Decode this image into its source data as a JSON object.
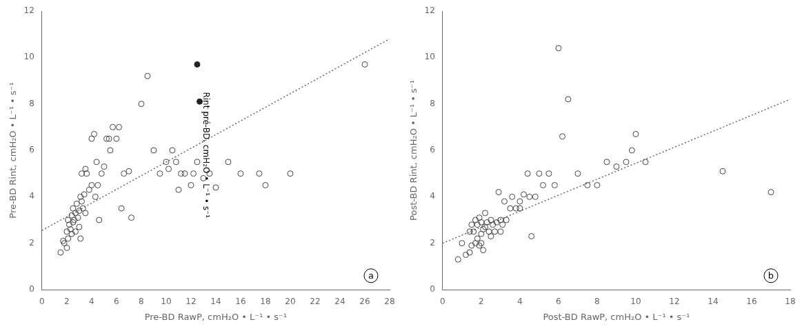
{
  "chart_data": [
    {
      "type": "scatter",
      "x_label": "Pre-BD RawP, cmH₂O • L⁻¹ • s⁻¹",
      "y_label": "Pre-BD Rint, cmH₂O • L⁻¹ • s⁻¹",
      "xlim": [
        0,
        28
      ],
      "ylim": [
        0,
        12
      ],
      "xticks": [
        0,
        2,
        4,
        6,
        8,
        10,
        12,
        14,
        16,
        18,
        20,
        22,
        24,
        26,
        28
      ],
      "yticks": [
        0,
        2,
        4,
        6,
        8,
        10,
        12
      ],
      "grid": false,
      "annotations": [
        {
          "text": "Rint pré-BD, cmH₂O • L⁻¹ • s⁻¹",
          "x": 13.2,
          "y": 5.8
        },
        {
          "text": "a",
          "x": 26.5,
          "y": 0.6
        }
      ],
      "series": [
        {
          "type": "scatter",
          "marker": "circle_open",
          "color": "#444444",
          "x": [
            1.5,
            1.7,
            1.8,
            2.0,
            2.0,
            2.1,
            2.1,
            2.2,
            2.3,
            2.4,
            2.4,
            2.5,
            2.5,
            2.6,
            2.7,
            2.7,
            2.8,
            2.9,
            3.0,
            3.0,
            3.1,
            3.1,
            3.2,
            3.2,
            3.3,
            3.4,
            3.5,
            3.5,
            3.6,
            3.8,
            4.0,
            4.0,
            4.2,
            4.3,
            4.4,
            4.5,
            4.6,
            4.8,
            5.0,
            5.2,
            5.4,
            5.5,
            5.7,
            6.0,
            6.2,
            6.4,
            6.6,
            7.0,
            7.2,
            8.0,
            8.5,
            9.0,
            9.5,
            10.0,
            10.2,
            10.5,
            10.8,
            11.0,
            11.2,
            11.5,
            12.0,
            12.2,
            12.5,
            13.0,
            13.5,
            14.0,
            15.0,
            16.0,
            17.5,
            18.0,
            20.0,
            26.0
          ],
          "values": [
            1.6,
            2.1,
            2.0,
            2.5,
            1.8,
            2.2,
            3.0,
            2.8,
            2.6,
            3.2,
            2.4,
            2.9,
            3.5,
            3.0,
            3.3,
            2.5,
            3.7,
            3.1,
            3.4,
            2.7,
            4.0,
            2.2,
            3.8,
            5.0,
            3.5,
            4.1,
            5.2,
            3.3,
            5.0,
            4.3,
            4.5,
            6.5,
            6.7,
            4.0,
            5.5,
            4.5,
            3.0,
            5.0,
            5.3,
            6.5,
            6.5,
            6.0,
            7.0,
            6.5,
            7.0,
            3.5,
            5.0,
            5.1,
            3.1,
            8.0,
            9.2,
            6.0,
            5.0,
            5.5,
            5.2,
            6.0,
            5.5,
            4.3,
            5.0,
            5.0,
            4.5,
            5.0,
            5.5,
            4.8,
            5.0,
            4.4,
            5.5,
            5.0,
            5.0,
            4.5,
            5.0,
            9.7
          ]
        },
        {
          "type": "scatter",
          "marker": "circle",
          "color": "#222222",
          "x": [
            12.5,
            12.7
          ],
          "values": [
            9.7,
            8.1
          ]
        },
        {
          "type": "line",
          "line_style": "dotted",
          "color": "#666666",
          "x": [
            0,
            28
          ],
          "values": [
            2.55,
            10.8
          ]
        }
      ]
    },
    {
      "type": "scatter",
      "x_label": "Post-BD RawP, cmH₂O • L⁻¹ • s⁻¹",
      "y_label": "Post-BD Rint, cmH₂O • L⁻¹ • s⁻¹",
      "xlim": [
        0,
        18
      ],
      "ylim": [
        0,
        12
      ],
      "xticks": [
        0,
        2,
        4,
        6,
        8,
        10,
        12,
        14,
        16,
        18
      ],
      "yticks": [
        0,
        2,
        4,
        6,
        8,
        10,
        12
      ],
      "grid": false,
      "annotations": [
        {
          "text": "b",
          "x": 17.0,
          "y": 0.6
        }
      ],
      "series": [
        {
          "type": "scatter",
          "marker": "circle_open",
          "color": "#444444",
          "x": [
            0.8,
            1.0,
            1.2,
            1.4,
            1.4,
            1.5,
            1.5,
            1.6,
            1.7,
            1.7,
            1.8,
            1.8,
            1.9,
            1.9,
            2.0,
            2.0,
            2.0,
            2.1,
            2.1,
            2.2,
            2.2,
            2.3,
            2.4,
            2.5,
            2.5,
            2.6,
            2.7,
            2.8,
            2.9,
            3.0,
            3.0,
            3.1,
            3.2,
            3.3,
            3.5,
            3.6,
            3.8,
            4.0,
            4.0,
            4.2,
            4.4,
            4.5,
            4.6,
            4.8,
            5.0,
            5.2,
            5.5,
            5.8,
            6.0,
            6.2,
            6.5,
            7.0,
            7.5,
            8.0,
            8.5,
            9.0,
            9.5,
            9.8,
            10.0,
            10.5,
            14.5,
            17.0
          ],
          "values": [
            1.3,
            2.0,
            1.5,
            2.5,
            1.6,
            1.9,
            2.8,
            2.5,
            2.0,
            3.0,
            2.2,
            2.8,
            1.9,
            3.1,
            2.4,
            2.0,
            2.9,
            2.6,
            1.7,
            2.7,
            3.3,
            2.9,
            2.5,
            3.0,
            2.3,
            2.8,
            2.5,
            2.9,
            4.2,
            3.0,
            2.5,
            2.8,
            3.8,
            3.0,
            3.5,
            4.0,
            3.5,
            3.8,
            3.5,
            4.1,
            5.0,
            4.0,
            2.3,
            4.0,
            5.0,
            4.5,
            5.0,
            4.5,
            10.4,
            6.6,
            8.2,
            5.0,
            4.5,
            4.5,
            5.5,
            5.3,
            5.5,
            6.0,
            6.7,
            5.5,
            5.1,
            4.2
          ]
        },
        {
          "type": "line",
          "line_style": "dotted",
          "color": "#666666",
          "x": [
            0,
            18
          ],
          "values": [
            2.0,
            8.2
          ]
        }
      ]
    }
  ]
}
